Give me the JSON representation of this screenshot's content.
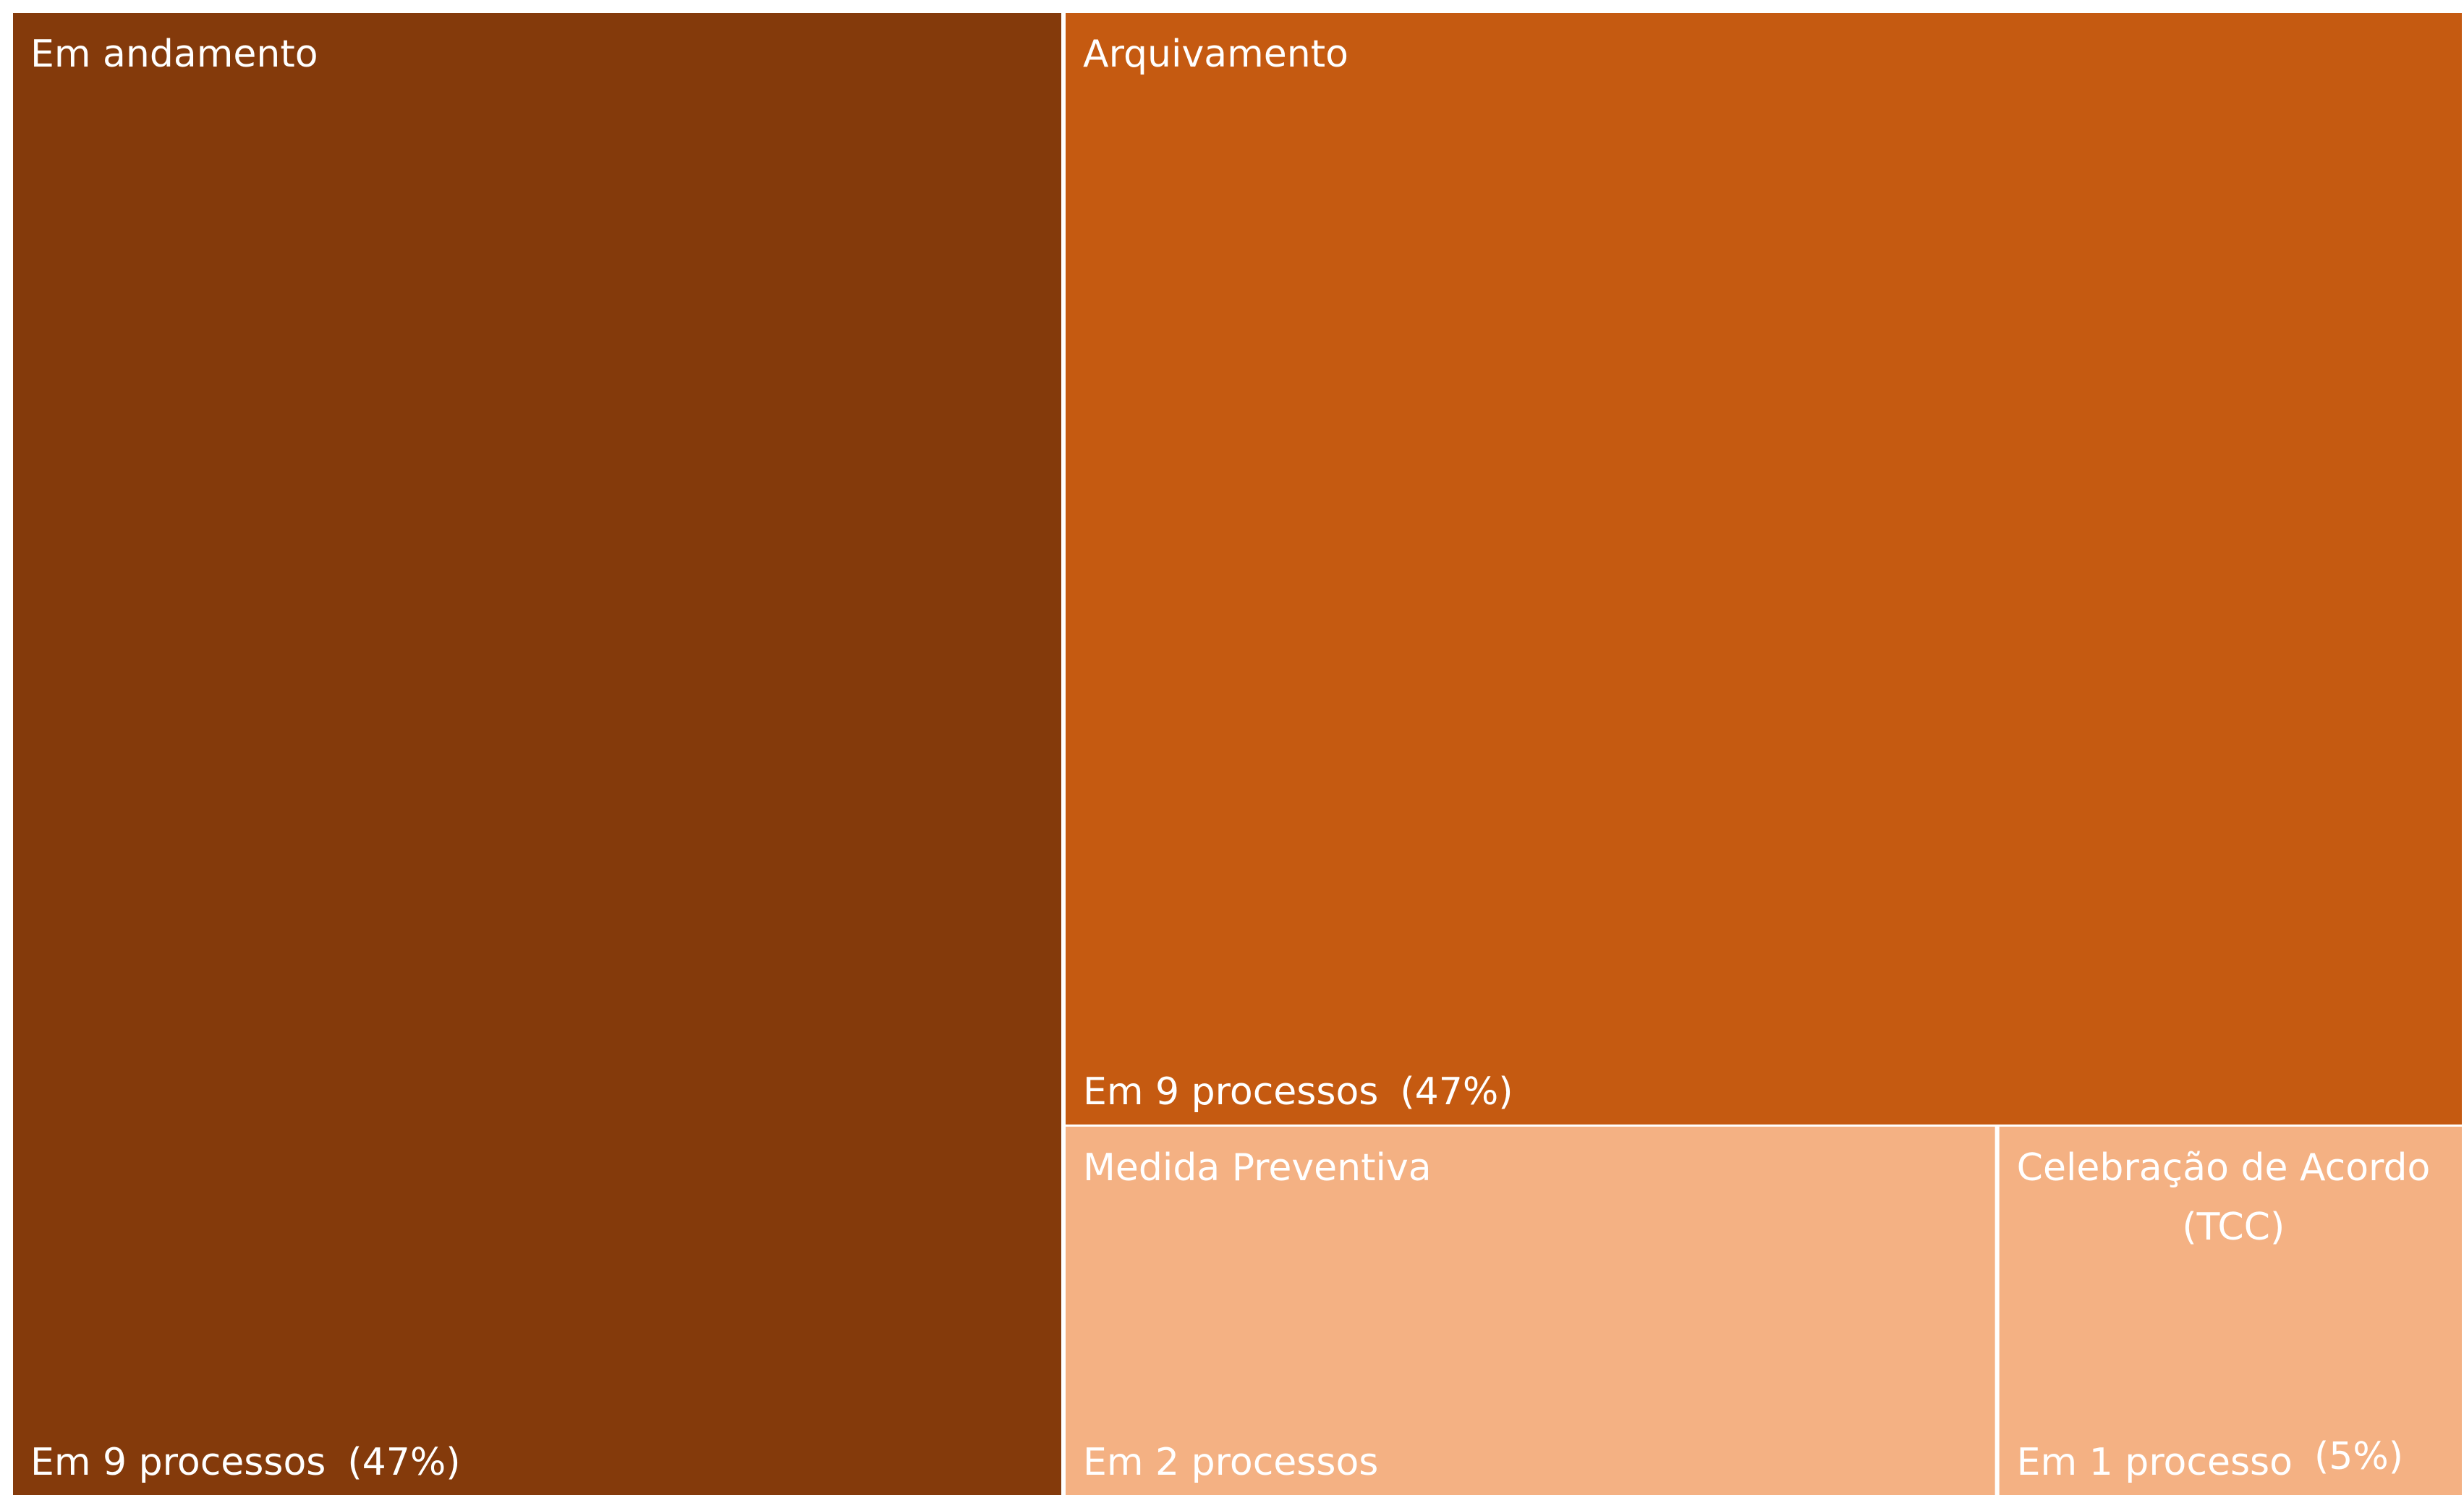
{
  "chart_data": {
    "type": "treemap",
    "title": "",
    "unit": "processos",
    "items": [
      {
        "name": "Em andamento",
        "name_lines": [
          "Em andamento"
        ],
        "value": 9,
        "value_text": "Em 9 processos",
        "percent_text": "(47%)",
        "color": "#843A0B"
      },
      {
        "name": "Arquivamento",
        "name_lines": [
          "Arquivamento"
        ],
        "value": 9,
        "value_text": "Em 9 processos",
        "percent_text": "(47%)",
        "color": "#C55A11"
      },
      {
        "name": "Medida Preventiva",
        "name_lines": [
          "Medida Preventiva"
        ],
        "value": 2,
        "value_text": "Em 2 processos",
        "percent_text": "",
        "color": "#F4B183"
      },
      {
        "name": "Celebração de Acordo (TCC)",
        "name_lines": [
          "Celebração de Acordo",
          "(TCC)"
        ],
        "value": 1,
        "value_text": "Em 1 processo",
        "percent_text": "(5%)",
        "color": "#F4B183"
      }
    ]
  }
}
